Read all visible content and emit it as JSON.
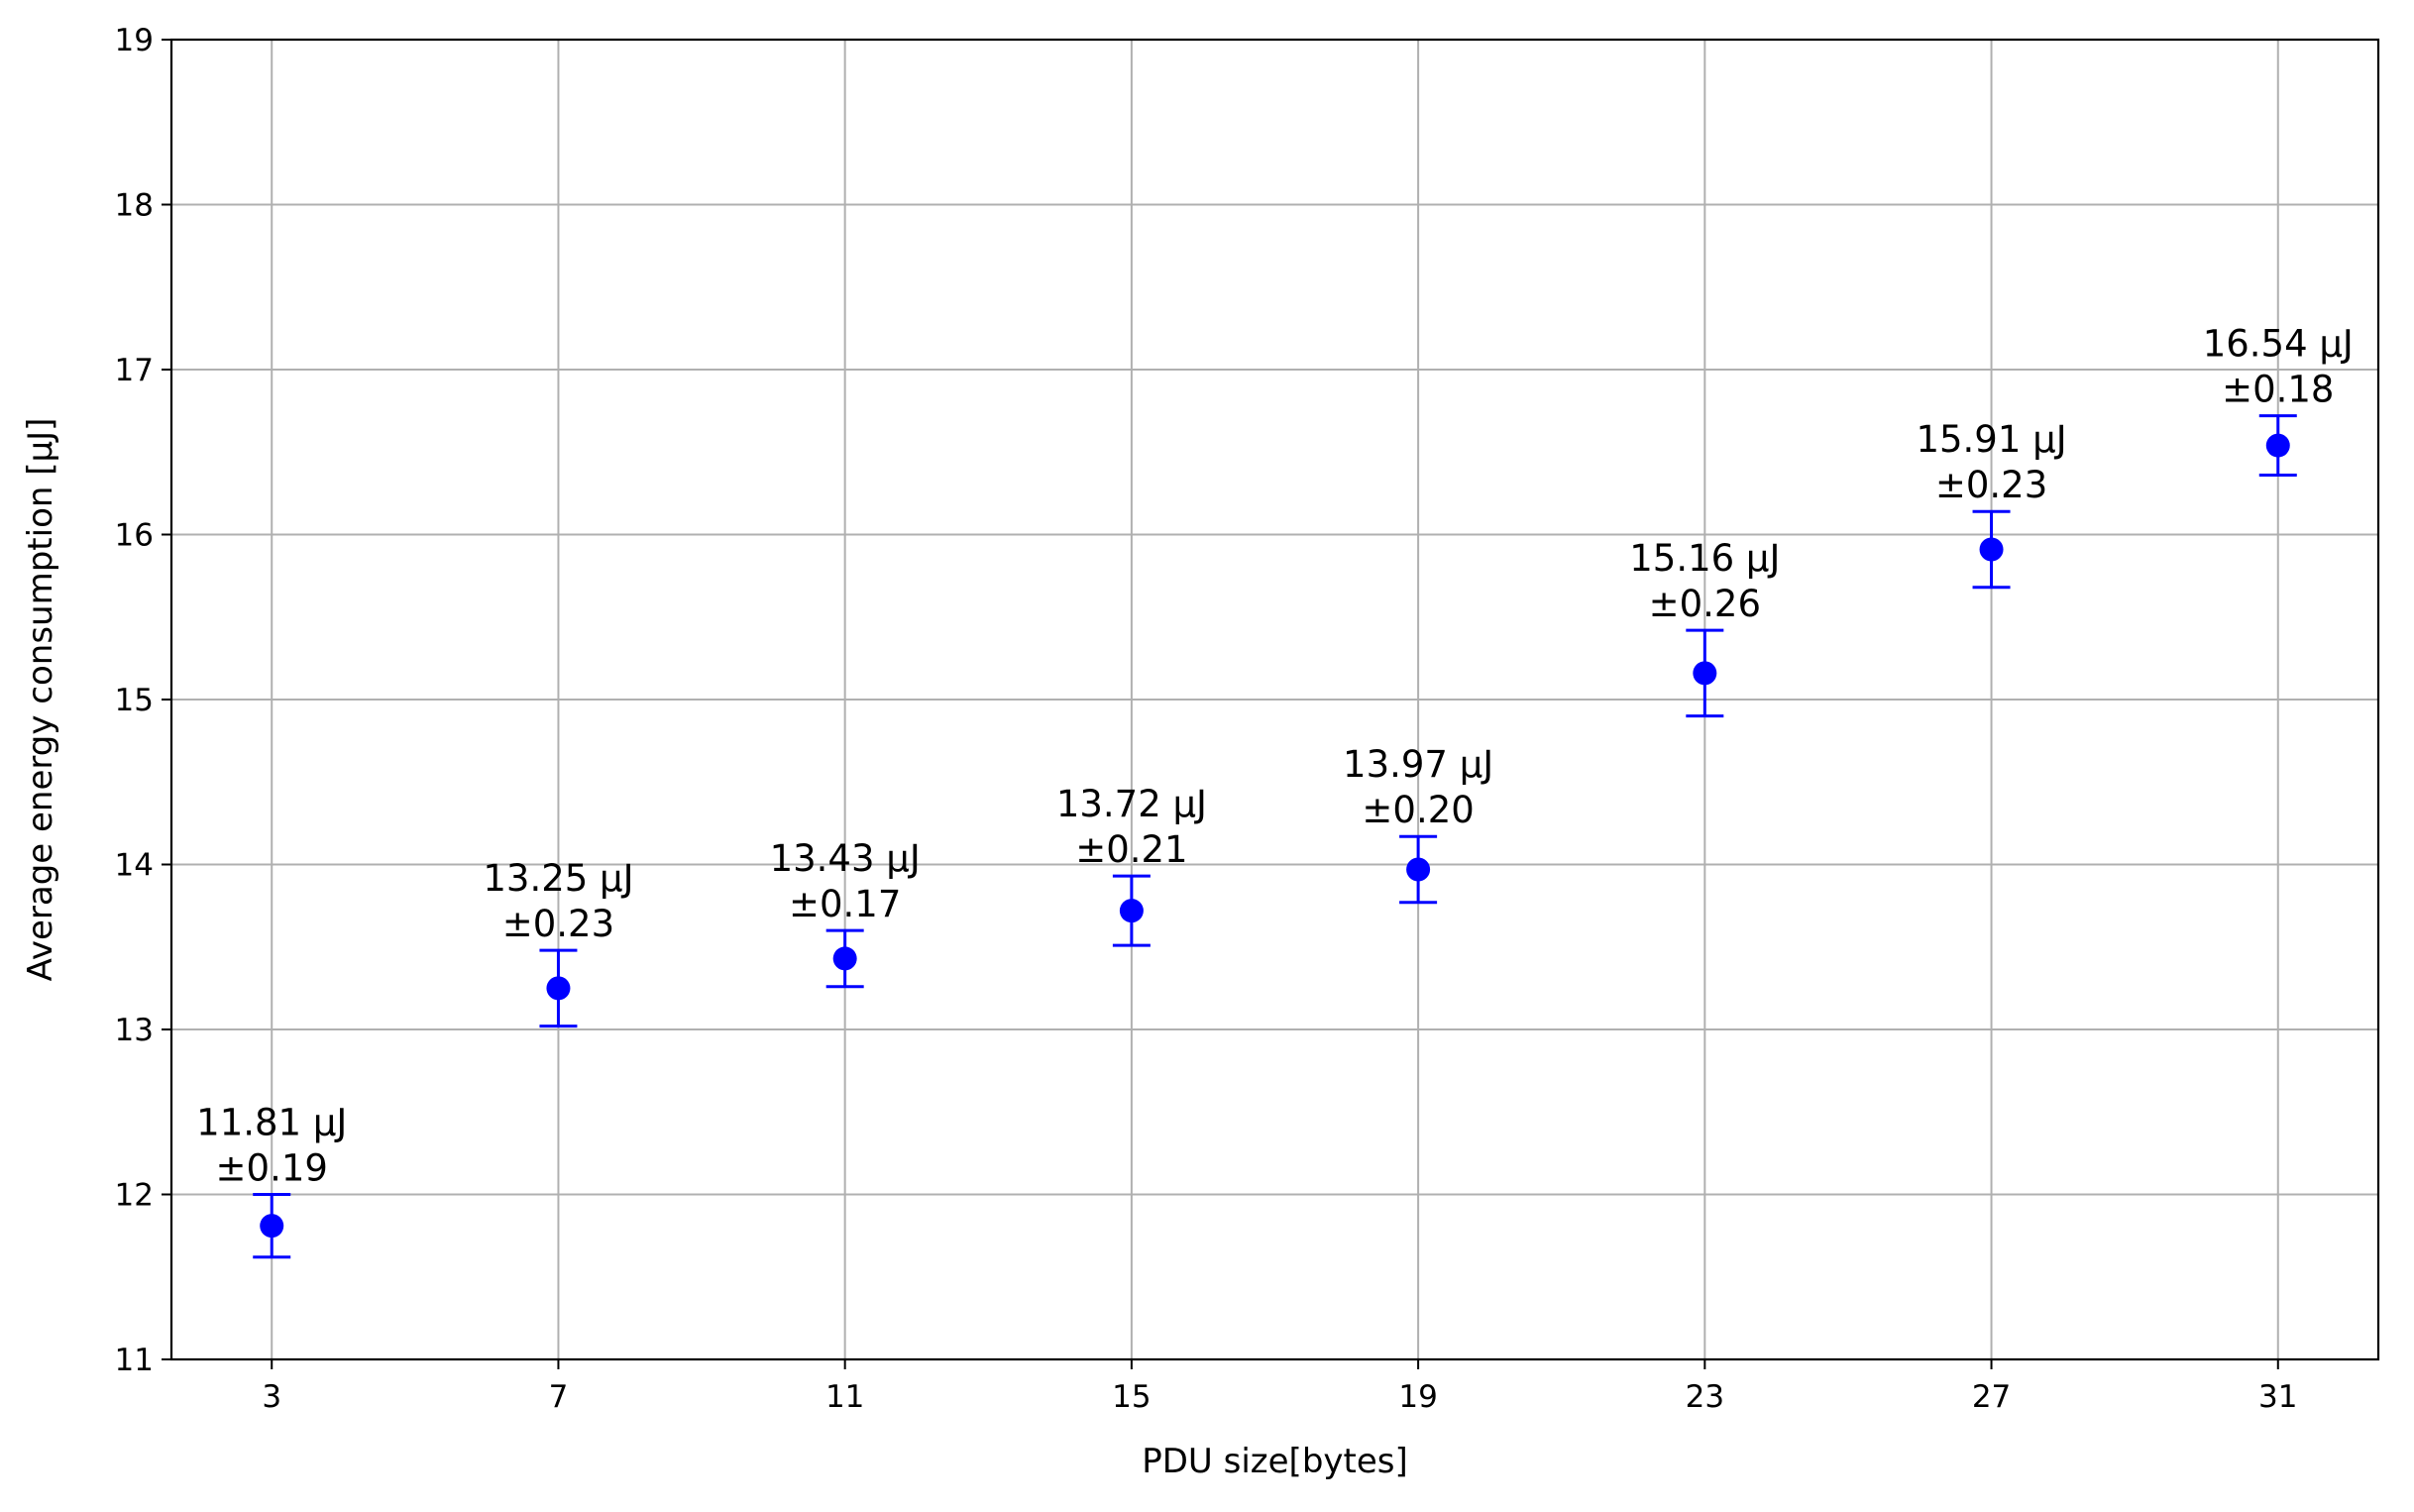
{
  "chart_data": {
    "type": "scatter",
    "title": "",
    "xlabel": "PDU size[bytes]",
    "ylabel": "Average energy consumption [µJ]",
    "xlim": [
      1.6,
      32.4
    ],
    "ylim": [
      11,
      19
    ],
    "xticks": [
      3,
      7,
      11,
      15,
      19,
      23,
      27,
      31
    ],
    "yticks": [
      11,
      12,
      13,
      14,
      15,
      16,
      17,
      18,
      19
    ],
    "grid": true,
    "legend": "none",
    "color": "#0000ff",
    "series": [
      {
        "x": [
          3,
          7,
          11,
          15,
          19,
          23,
          27,
          31
        ],
        "y": [
          11.81,
          13.25,
          13.43,
          13.72,
          13.97,
          15.16,
          15.91,
          16.54
        ],
        "error": [
          0.19,
          0.23,
          0.17,
          0.21,
          0.2,
          0.26,
          0.23,
          0.18
        ]
      }
    ],
    "annotations": [
      {
        "line1": "11.81 µJ",
        "line2": "±0.19"
      },
      {
        "line1": "13.25 µJ",
        "line2": "±0.23"
      },
      {
        "line1": "13.43 µJ",
        "line2": "±0.17"
      },
      {
        "line1": "13.72 µJ",
        "line2": "±0.21"
      },
      {
        "line1": "13.97 µJ",
        "line2": "±0.20"
      },
      {
        "line1": "15.16 µJ",
        "line2": "±0.26"
      },
      {
        "line1": "15.91 µJ",
        "line2": "±0.23"
      },
      {
        "line1": "16.54 µJ",
        "line2": "±0.18"
      }
    ]
  }
}
